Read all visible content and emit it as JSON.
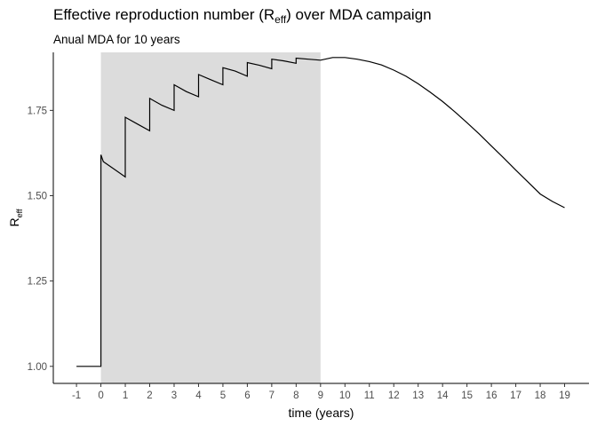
{
  "chart_data": {
    "type": "line",
    "title": {
      "prefix": "Effective reproduction number (R",
      "subscript": "eff",
      "suffix": ") over MDA campaign"
    },
    "subtitle": "Anual MDA for 10 years",
    "xlabel": "time (years)",
    "ylabel": {
      "main": "R",
      "subscript": "eff"
    },
    "xlim": [
      -1,
      19
    ],
    "ylim": [
      0.95,
      1.92
    ],
    "x_ticks": [
      -1,
      0,
      1,
      2,
      3,
      4,
      5,
      6,
      7,
      8,
      9,
      10,
      11,
      12,
      13,
      14,
      15,
      16,
      17,
      18,
      19
    ],
    "y_ticks": [
      1.0,
      1.25,
      1.5,
      1.75
    ],
    "y_tick_labels": [
      "1.00",
      "1.25",
      "1.50",
      "1.75"
    ],
    "shaded_region": {
      "x_start": 0,
      "x_end": 9,
      "color": "#dcdcdc"
    },
    "line_color": "#000000",
    "grid": false,
    "series": [
      {
        "values": [
          [
            -1,
            1.0
          ],
          [
            0,
            1.0
          ],
          [
            0,
            1.62
          ],
          [
            0.1,
            1.6
          ],
          [
            0.5,
            1.58
          ],
          [
            1,
            1.555
          ],
          [
            1,
            1.73
          ],
          [
            1.5,
            1.71
          ],
          [
            2,
            1.69
          ],
          [
            2,
            1.785
          ],
          [
            2.5,
            1.765
          ],
          [
            3,
            1.75
          ],
          [
            3,
            1.825
          ],
          [
            3.5,
            1.805
          ],
          [
            4,
            1.79
          ],
          [
            4,
            1.855
          ],
          [
            4.5,
            1.84
          ],
          [
            5,
            1.825
          ],
          [
            5,
            1.875
          ],
          [
            5.5,
            1.865
          ],
          [
            6,
            1.85
          ],
          [
            6,
            1.89
          ],
          [
            6.5,
            1.882
          ],
          [
            7,
            1.872
          ],
          [
            7,
            1.9
          ],
          [
            7.5,
            1.895
          ],
          [
            8,
            1.888
          ],
          [
            8,
            1.903
          ],
          [
            8.5,
            1.9
          ],
          [
            9,
            1.897
          ],
          [
            9.5,
            1.905
          ],
          [
            10,
            1.905
          ],
          [
            10.5,
            1.9
          ],
          [
            11,
            1.893
          ],
          [
            11.5,
            1.883
          ],
          [
            12,
            1.868
          ],
          [
            12.5,
            1.85
          ],
          [
            13,
            1.828
          ],
          [
            13.5,
            1.803
          ],
          [
            14,
            1.776
          ],
          [
            14.5,
            1.746
          ],
          [
            15,
            1.714
          ],
          [
            15.5,
            1.681
          ],
          [
            16,
            1.646
          ],
          [
            16.5,
            1.611
          ],
          [
            17,
            1.575
          ],
          [
            17.5,
            1.54
          ],
          [
            18,
            1.505
          ],
          [
            18.5,
            1.483
          ],
          [
            19,
            1.465
          ]
        ]
      }
    ]
  }
}
